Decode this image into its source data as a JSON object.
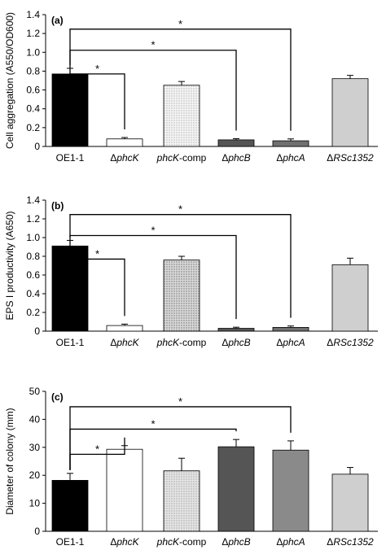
{
  "chart_data": [
    {
      "type": "bar",
      "panel_label": "(a)",
      "ylabel": "Cell aggregation (A550/OD600)",
      "ylim": [
        0,
        1.4
      ],
      "yticks": [
        "0",
        "0.2",
        "0.4",
        "0.6",
        "0.8",
        "1.0",
        "1.2",
        "1.4"
      ],
      "categories": [
        {
          "pre": "",
          "italic": "",
          "post": "OE1-1"
        },
        {
          "pre": "Δ",
          "italic": "phcK",
          "post": ""
        },
        {
          "pre": "",
          "italic": "phcK",
          "post": "-comp"
        },
        {
          "pre": "Δ",
          "italic": "phcB",
          "post": ""
        },
        {
          "pre": "Δ",
          "italic": "phcA",
          "post": ""
        },
        {
          "pre": "Δ",
          "italic": "RSc1352",
          "post": ""
        }
      ],
      "values": [
        0.77,
        0.08,
        0.65,
        0.07,
        0.06,
        0.72
      ],
      "errors": [
        0.06,
        0.015,
        0.04,
        0.012,
        0.02,
        0.035
      ],
      "bar_colors": [
        "#000000",
        "#ffffff",
        "#ececec",
        "#555555",
        "#707070",
        "#cfcfcf"
      ],
      "comparisons": [
        {
          "to": 1,
          "label": "*"
        },
        {
          "to": 3,
          "label": "*"
        },
        {
          "to": 4,
          "label": "*"
        }
      ],
      "grid": false
    },
    {
      "type": "bar",
      "panel_label": "(b)",
      "ylabel": "EPS I productivity (A650)",
      "ylim": [
        0,
        1.4
      ],
      "yticks": [
        "0",
        "0.2",
        "0.4",
        "0.6",
        "0.8",
        "1.0",
        "1.2",
        "1.4"
      ],
      "categories": [
        {
          "pre": "",
          "italic": "",
          "post": "OE1-1"
        },
        {
          "pre": "Δ",
          "italic": "phcK",
          "post": ""
        },
        {
          "pre": "",
          "italic": "phcK",
          "post": "-comp"
        },
        {
          "pre": "Δ",
          "italic": "phcB",
          "post": ""
        },
        {
          "pre": "Δ",
          "italic": "phcA",
          "post": ""
        },
        {
          "pre": "Δ",
          "italic": "RSc1352",
          "post": ""
        }
      ],
      "values": [
        0.91,
        0.06,
        0.76,
        0.03,
        0.04,
        0.71
      ],
      "errors": [
        0.06,
        0.015,
        0.04,
        0.012,
        0.015,
        0.07
      ],
      "bar_colors": [
        "#000000",
        "#ffffff",
        "#cdcdcd",
        "#555555",
        "#707070",
        "#cfcfcf"
      ],
      "comparisons": [
        {
          "to": 1,
          "label": "*"
        },
        {
          "to": 3,
          "label": "*"
        },
        {
          "to": 4,
          "label": "*"
        }
      ],
      "grid": false
    },
    {
      "type": "bar",
      "panel_label": "(c)",
      "ylabel": "Diameter of colony (mm)",
      "ylim": [
        0,
        50
      ],
      "yticks": [
        "0",
        "10",
        "20",
        "30",
        "40",
        "50"
      ],
      "categories": [
        {
          "pre": "",
          "italic": "",
          "post": "OE1-1"
        },
        {
          "pre": "Δ",
          "italic": "phcK",
          "post": ""
        },
        {
          "pre": "",
          "italic": "phcK",
          "post": "-comp"
        },
        {
          "pre": "Δ",
          "italic": "phcB",
          "post": ""
        },
        {
          "pre": "Δ",
          "italic": "phcA",
          "post": ""
        },
        {
          "pre": "Δ",
          "italic": "RSc1352",
          "post": ""
        }
      ],
      "values": [
        18.2,
        29.3,
        21.6,
        30.2,
        29.0,
        20.4
      ],
      "errors": [
        2.5,
        1.3,
        4.5,
        2.6,
        3.3,
        2.4
      ],
      "bar_colors": [
        "#000000",
        "#ffffff",
        "#d9d9d9",
        "#555555",
        "#8a8a8a",
        "#cfcfcf"
      ],
      "comparisons": [
        {
          "to": 1,
          "label": "*"
        },
        {
          "to": 3,
          "label": "*"
        },
        {
          "to": 4,
          "label": "*"
        }
      ],
      "grid": false
    }
  ]
}
